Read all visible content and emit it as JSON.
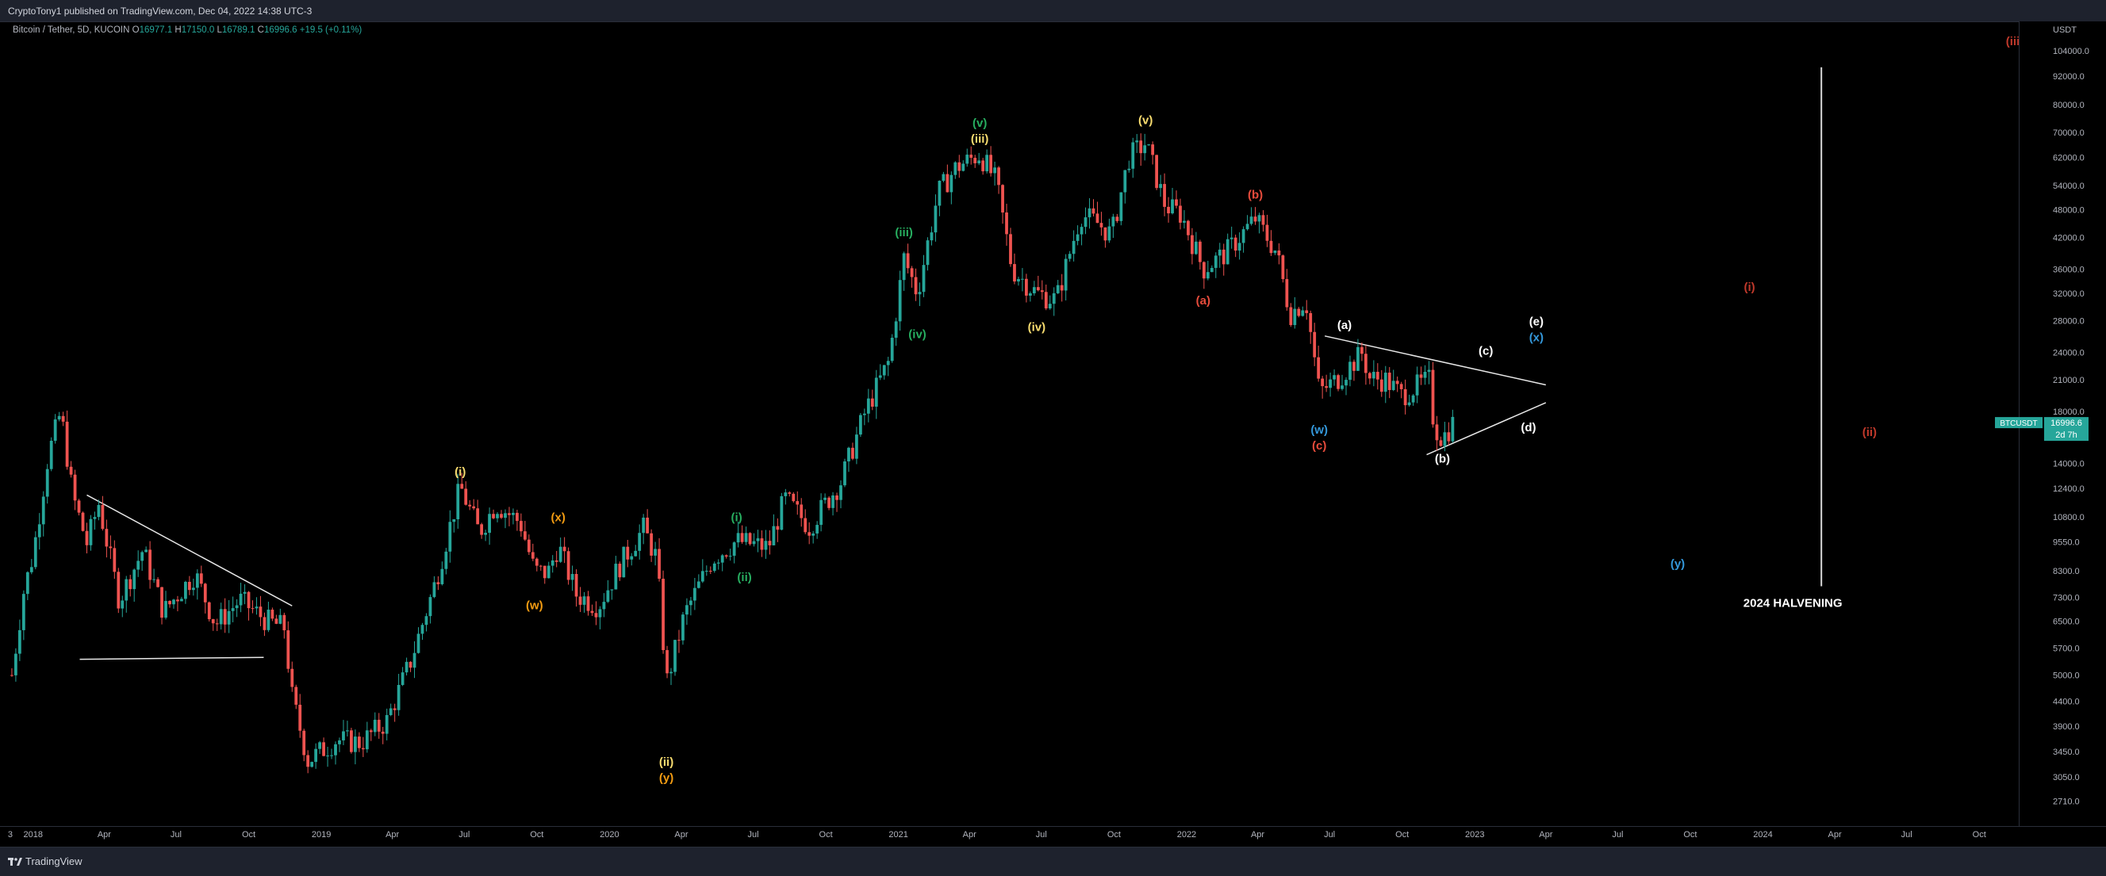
{
  "header": {
    "publish_line": "CryptoTony1 published on TradingView.com, Dec 04, 2022 14:38 UTC-3"
  },
  "legend": {
    "symbol": "Bitcoin / Tether, 5D, KUCOIN",
    "open_label": "O",
    "open": "16977.1",
    "high_label": "H",
    "high": "17150.0",
    "low_label": "L",
    "low": "16789.1",
    "close_label": "C",
    "close": "16996.6",
    "change": "+19.5 (+0.11%)"
  },
  "footer": {
    "brand": "TradingView"
  },
  "colors": {
    "up": "#26a69a",
    "down": "#ef5350",
    "background": "#000000",
    "panel": "#1e222d",
    "price_tag": "#26a69a"
  },
  "chart_data": {
    "type": "candlestick",
    "title": "",
    "symbol": "BTCUSDT",
    "price_tag": {
      "symbol": "BTCUSDT",
      "price": "16996.6",
      "countdown": "2d 7h"
    },
    "y_axis": {
      "unit_label": "USDT",
      "scale": "log",
      "range": [
        2400,
        120000
      ],
      "tick_labels": [
        "104000.0",
        "92000.0",
        "80000.0",
        "70000.0",
        "62000.0",
        "54000.0",
        "48000.0",
        "42000.0",
        "36000.0",
        "32000.0",
        "28000.0",
        "24000.0",
        "21000.0",
        "18000.0",
        "16000.0",
        "14000.0",
        "12400.0",
        "10800.0",
        "9550.0",
        "8300.0",
        "7300.0",
        "6500.0",
        "5700.0",
        "5000.0",
        "4400.0",
        "3900.0",
        "3450.0",
        "3050.0",
        "2710.0"
      ]
    },
    "x_axis": {
      "range": [
        "2017-11-20",
        "2024-11-20"
      ],
      "ticks": [
        {
          "label": "3",
          "date": "2017-12-03"
        },
        {
          "label": "2018",
          "date": "2018-01-01"
        },
        {
          "label": "Apr",
          "date": "2018-04-01"
        },
        {
          "label": "Jul",
          "date": "2018-07-01"
        },
        {
          "label": "Oct",
          "date": "2018-10-01"
        },
        {
          "label": "2019",
          "date": "2019-01-01"
        },
        {
          "label": "Apr",
          "date": "2019-04-01"
        },
        {
          "label": "Jul",
          "date": "2019-07-01"
        },
        {
          "label": "Oct",
          "date": "2019-10-01"
        },
        {
          "label": "2020",
          "date": "2020-01-01"
        },
        {
          "label": "Apr",
          "date": "2020-04-01"
        },
        {
          "label": "Jul",
          "date": "2020-07-01"
        },
        {
          "label": "Oct",
          "date": "2020-10-01"
        },
        {
          "label": "2021",
          "date": "2021-01-01"
        },
        {
          "label": "Apr",
          "date": "2021-04-01"
        },
        {
          "label": "Jul",
          "date": "2021-07-01"
        },
        {
          "label": "Oct",
          "date": "2021-10-01"
        },
        {
          "label": "2022",
          "date": "2022-01-01"
        },
        {
          "label": "Apr",
          "date": "2022-04-01"
        },
        {
          "label": "Jul",
          "date": "2022-07-01"
        },
        {
          "label": "Oct",
          "date": "2022-10-01"
        },
        {
          "label": "2023",
          "date": "2023-01-01"
        },
        {
          "label": "Apr",
          "date": "2023-04-01"
        },
        {
          "label": "Jul",
          "date": "2023-07-01"
        },
        {
          "label": "Oct",
          "date": "2023-10-01"
        },
        {
          "label": "2024",
          "date": "2024-01-01"
        },
        {
          "label": "Apr",
          "date": "2024-04-01"
        },
        {
          "label": "Jul",
          "date": "2024-07-01"
        },
        {
          "label": "Oct",
          "date": "2024-10-01"
        }
      ]
    },
    "price_path": [
      [
        "2017-12-05",
        5000
      ],
      [
        "2017-12-20",
        7500
      ],
      [
        "2018-01-01",
        9000
      ],
      [
        "2018-01-20",
        14500
      ],
      [
        "2018-02-05",
        18000
      ],
      [
        "2018-02-20",
        12000
      ],
      [
        "2018-03-10",
        9500
      ],
      [
        "2018-03-25",
        11500
      ],
      [
        "2018-04-20",
        7200
      ],
      [
        "2018-05-20",
        9200
      ],
      [
        "2018-06-15",
        6800
      ],
      [
        "2018-07-25",
        8200
      ],
      [
        "2018-08-20",
        6400
      ],
      [
        "2018-09-20",
        7200
      ],
      [
        "2018-10-25",
        6500
      ],
      [
        "2018-11-15",
        6300
      ],
      [
        "2018-11-25",
        4500
      ],
      [
        "2018-12-15",
        3300
      ],
      [
        "2019-01-20",
        3650
      ],
      [
        "2019-02-20",
        3600
      ],
      [
        "2019-03-25",
        4000
      ],
      [
        "2019-04-25",
        5400
      ],
      [
        "2019-05-25",
        7800
      ],
      [
        "2019-06-26",
        12500
      ],
      [
        "2019-07-20",
        10000
      ],
      [
        "2019-08-10",
        11500
      ],
      [
        "2019-09-10",
        10500
      ],
      [
        "2019-09-28",
        8300
      ],
      [
        "2019-10-15",
        8200
      ],
      [
        "2019-10-28",
        9400
      ],
      [
        "2019-11-20",
        7400
      ],
      [
        "2019-12-18",
        7000
      ],
      [
        "2020-01-15",
        8600
      ],
      [
        "2020-02-13",
        10200
      ],
      [
        "2020-03-01",
        8800
      ],
      [
        "2020-03-13",
        4800
      ],
      [
        "2020-04-05",
        6700
      ],
      [
        "2020-05-10",
        8800
      ],
      [
        "2020-06-10",
        9600
      ],
      [
        "2020-07-20",
        9300
      ],
      [
        "2020-08-10",
        11800
      ],
      [
        "2020-09-10",
        10300
      ],
      [
        "2020-10-20",
        12800
      ],
      [
        "2020-11-20",
        18000
      ],
      [
        "2020-12-20",
        23000
      ],
      [
        "2021-01-08",
        38000
      ],
      [
        "2021-01-25",
        32000
      ],
      [
        "2021-02-20",
        52000
      ],
      [
        "2021-03-15",
        59000
      ],
      [
        "2021-04-14",
        63000
      ],
      [
        "2021-05-05",
        55000
      ],
      [
        "2021-05-25",
        36000
      ],
      [
        "2021-06-25",
        32000
      ],
      [
        "2021-07-20",
        31000
      ],
      [
        "2021-08-20",
        47000
      ],
      [
        "2021-09-10",
        45000
      ],
      [
        "2021-09-28",
        42500
      ],
      [
        "2021-10-20",
        62000
      ],
      [
        "2021-11-10",
        66500
      ],
      [
        "2021-12-05",
        49000
      ],
      [
        "2021-12-25",
        47000
      ],
      [
        "2022-01-22",
        36000
      ],
      [
        "2022-02-20",
        39000
      ],
      [
        "2022-03-29",
        46000
      ],
      [
        "2022-04-25",
        39000
      ],
      [
        "2022-05-12",
        29000
      ],
      [
        "2022-06-01",
        31000
      ],
      [
        "2022-06-18",
        19800
      ],
      [
        "2022-07-10",
        21000
      ],
      [
        "2022-08-12",
        24000
      ],
      [
        "2022-08-20",
        21200
      ],
      [
        "2022-09-10",
        21000
      ],
      [
        "2022-09-30",
        19500
      ],
      [
        "2022-10-25",
        20600
      ],
      [
        "2022-11-05",
        21000
      ],
      [
        "2022-11-10",
        16800
      ],
      [
        "2022-11-21",
        15800
      ],
      [
        "2022-12-04",
        16996.6
      ]
    ],
    "wave_labels": [
      {
        "text": "(i)",
        "date": "2019-06-26",
        "price": 12500,
        "color": "#f7dc6f",
        "side": "above"
      },
      {
        "text": "(ii)",
        "date": "2020-03-13",
        "price": 3500,
        "color": "#f7dc6f",
        "side": "below"
      },
      {
        "text": "(y)",
        "date": "2020-03-13",
        "price": 3500,
        "color": "#f39c12",
        "side": "below2"
      },
      {
        "text": "(x)",
        "date": "2019-10-28",
        "price": 10000,
        "color": "#f39c12",
        "side": "above"
      },
      {
        "text": "(w)",
        "date": "2019-09-28",
        "price": 7500,
        "color": "#f39c12",
        "side": "below"
      },
      {
        "text": "(i)",
        "date": "2020-06-10",
        "price": 10000,
        "color": "#27ae60",
        "side": "above"
      },
      {
        "text": "(ii)",
        "date": "2020-06-20",
        "price": 8600,
        "color": "#27ae60",
        "side": "below"
      },
      {
        "text": "(iii)",
        "date": "2021-01-08",
        "price": 40000,
        "color": "#27ae60",
        "side": "above"
      },
      {
        "text": "(iv)",
        "date": "2021-01-25",
        "price": 28000,
        "color": "#27ae60",
        "side": "below"
      },
      {
        "text": "(v)",
        "date": "2021-04-14",
        "price": 63000,
        "color": "#27ae60",
        "side": "above2"
      },
      {
        "text": "(iii)",
        "date": "2021-04-14",
        "price": 63000,
        "color": "#f7dc6f",
        "side": "above"
      },
      {
        "text": "(iv)",
        "date": "2021-06-25",
        "price": 29000,
        "color": "#f7dc6f",
        "side": "below"
      },
      {
        "text": "(v)",
        "date": "2021-11-10",
        "price": 69000,
        "color": "#f7dc6f",
        "side": "above"
      },
      {
        "text": "(a)",
        "date": "2022-01-22",
        "price": 33000,
        "color": "#e74c3c",
        "side": "below"
      },
      {
        "text": "(b)",
        "date": "2022-03-29",
        "price": 48000,
        "color": "#e74c3c",
        "side": "above"
      },
      {
        "text": "(c)",
        "date": "2022-06-18",
        "price": 17600,
        "color": "#e74c3c",
        "side": "below2"
      },
      {
        "text": "(w)",
        "date": "2022-06-18",
        "price": 17600,
        "color": "#3498db",
        "side": "below"
      },
      {
        "text": "(a)",
        "date": "2022-07-20",
        "price": 25500,
        "color": "#ffffff",
        "side": "above"
      },
      {
        "text": "(b)",
        "date": "2022-11-21",
        "price": 15300,
        "color": "#ffffff",
        "side": "below"
      },
      {
        "text": "(c)",
        "date": "2023-01-15",
        "price": 22500,
        "color": "#ffffff",
        "side": "above"
      },
      {
        "text": "(d)",
        "date": "2023-03-10",
        "price": 17800,
        "color": "#ffffff",
        "side": "below"
      },
      {
        "text": "(e)",
        "date": "2023-03-20",
        "price": 24000,
        "color": "#ffffff",
        "side": "above2"
      },
      {
        "text": "(x)",
        "date": "2023-03-20",
        "price": 24000,
        "color": "#3498db",
        "side": "above"
      },
      {
        "text": "(y)",
        "date": "2023-09-15",
        "price": 8600,
        "color": "#3498db",
        "side": "at"
      },
      {
        "text": "(i)",
        "date": "2023-12-15",
        "price": 33000,
        "color": "#c0392b",
        "side": "at"
      },
      {
        "text": "(ii)",
        "date": "2024-05-15",
        "price": 16300,
        "color": "#c0392b",
        "side": "at"
      },
      {
        "text": "(iii)",
        "date": "2024-11-15",
        "price": 109000,
        "color": "#c0392b",
        "side": "at"
      }
    ],
    "trendlines": [
      {
        "from": [
          "2018-03-10",
          12000
        ],
        "to": [
          "2018-11-25",
          7000
        ]
      },
      {
        "from": [
          "2018-03-01",
          5400
        ],
        "to": [
          "2018-10-20",
          5450
        ]
      },
      {
        "from": [
          "2022-06-25",
          26000
        ],
        "to": [
          "2023-04-01",
          20500
        ]
      },
      {
        "from": [
          "2022-11-01",
          14600
        ],
        "to": [
          "2023-04-01",
          18800
        ]
      }
    ],
    "halvening": {
      "label": "2024 HALVENING",
      "date": "2024-03-15",
      "price_top": 96000,
      "price_bottom": 7700
    }
  }
}
